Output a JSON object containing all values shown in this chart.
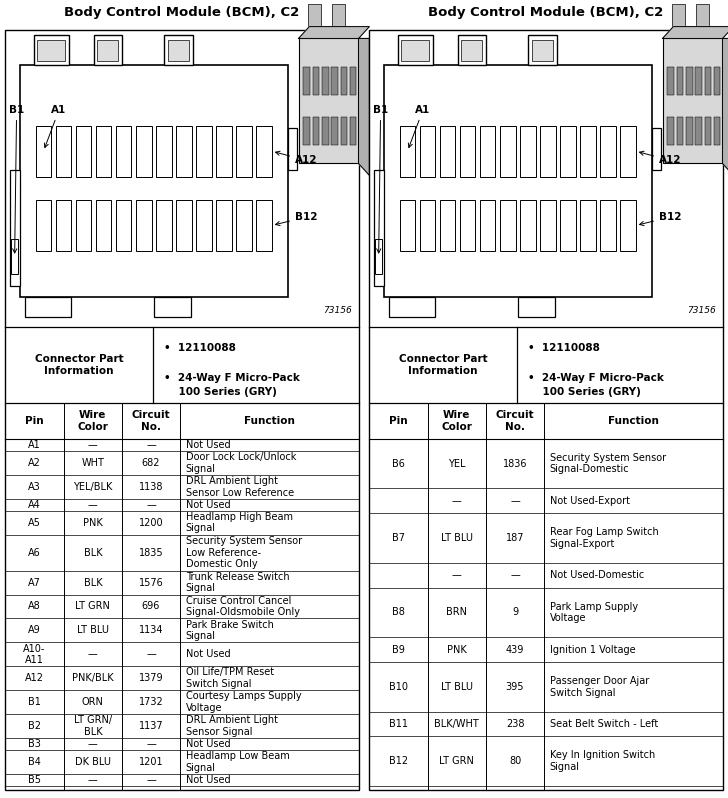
{
  "title": "Body Control Module (BCM), C2",
  "col_headers": [
    "Pin",
    "Wire\nColor",
    "Circuit\nNo.",
    "Function"
  ],
  "left_rows": [
    [
      "A1",
      "—",
      "—",
      "Not Used"
    ],
    [
      "A2",
      "WHT",
      "682",
      "Door Lock Lock/Unlock\nSignal"
    ],
    [
      "A3",
      "YEL/BLK",
      "1138",
      "DRL Ambient Light\nSensor Low Reference"
    ],
    [
      "A4",
      "—",
      "—",
      "Not Used"
    ],
    [
      "A5",
      "PNK",
      "1200",
      "Headlamp High Beam\nSignal"
    ],
    [
      "A6",
      "BLK",
      "1835",
      "Security System Sensor\nLow Reference-\nDomestic Only"
    ],
    [
      "A7",
      "BLK",
      "1576",
      "Trunk Release Switch\nSignal"
    ],
    [
      "A8",
      "LT GRN",
      "696",
      "Cruise Control Cancel\nSignal-Oldsmobile Only"
    ],
    [
      "A9",
      "LT BLU",
      "1134",
      "Park Brake Switch\nSignal"
    ],
    [
      "A10-\nA11",
      "—",
      "—",
      "Not Used"
    ],
    [
      "A12",
      "PNK/BLK",
      "1379",
      "Oil Life/TPM Reset\nSwitch Signal"
    ],
    [
      "B1",
      "ORN",
      "1732",
      "Courtesy Lamps Supply\nVoltage"
    ],
    [
      "B2",
      "LT GRN/\nBLK",
      "1137",
      "DRL Ambient Light\nSensor Signal"
    ],
    [
      "B3",
      "—",
      "—",
      "Not Used"
    ],
    [
      "B4",
      "DK BLU",
      "1201",
      "Headlamp Low Beam\nSignal"
    ],
    [
      "B5",
      "—",
      "—",
      "Not Used"
    ]
  ],
  "right_rows": [
    [
      "B6",
      "YEL",
      "1836",
      "Security System Sensor\nSignal-Domestic"
    ],
    [
      "",
      "—",
      "—",
      "Not Used-Export"
    ],
    [
      "B7",
      "LT BLU",
      "187",
      "Rear Fog Lamp Switch\nSignal-Export"
    ],
    [
      "",
      "—",
      "—",
      "Not Used-Domestic"
    ],
    [
      "B8",
      "BRN",
      "9",
      "Park Lamp Supply\nVoltage"
    ],
    [
      "B9",
      "PNK",
      "439",
      "Ignition 1 Voltage"
    ],
    [
      "B10",
      "LT BLU",
      "395",
      "Passenger Door Ajar\nSwitch Signal"
    ],
    [
      "B11",
      "BLK/WHT",
      "238",
      "Seat Belt Switch - Left"
    ],
    [
      "B12",
      "LT GRN",
      "80",
      "Key In Ignition Switch\nSignal"
    ]
  ],
  "fig_width": 7.28,
  "fig_height": 7.98,
  "panel_border_lw": 1.0,
  "title_fontsize": 9.5,
  "cell_fontsize": 7.0,
  "header_fontsize": 7.5,
  "info_fontsize": 7.5
}
